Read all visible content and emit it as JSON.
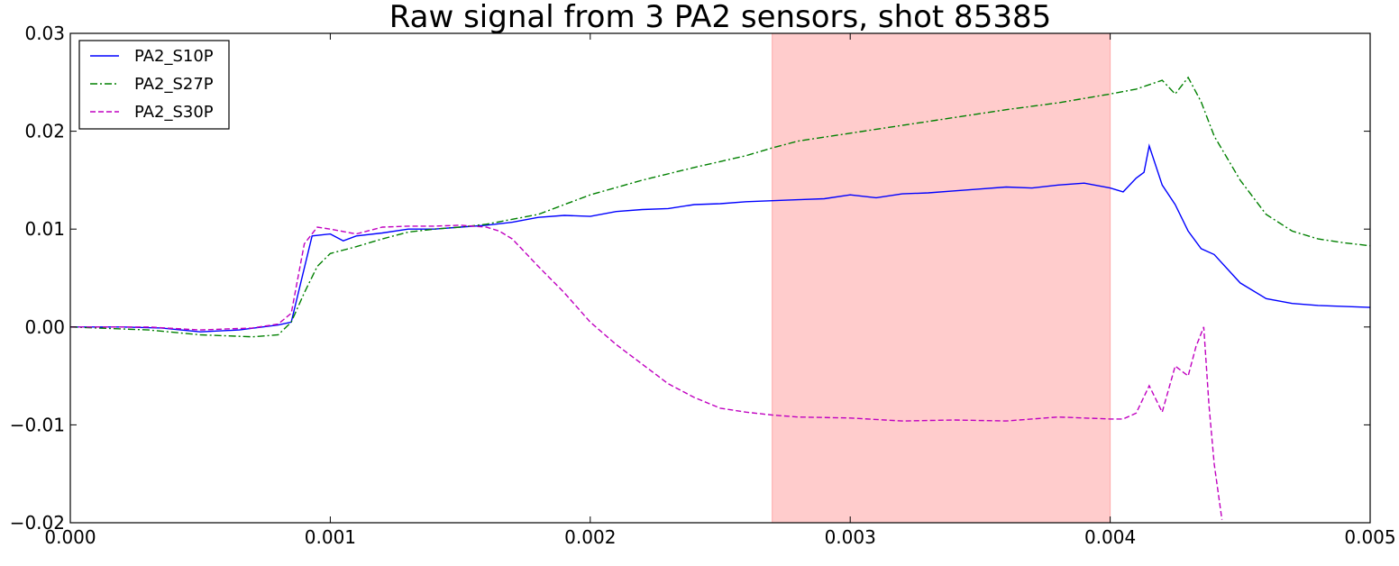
{
  "chart_data": {
    "type": "line",
    "title": "Raw signal from 3 PA2 sensors, shot 85385",
    "xlabel": "",
    "ylabel": "",
    "xlim": [
      0.0,
      0.005
    ],
    "ylim": [
      -0.02,
      0.03
    ],
    "xticks": [
      "0.000",
      "0.001",
      "0.002",
      "0.003",
      "0.004",
      "0.005"
    ],
    "yticks": [
      "0.03",
      "0.02",
      "0.01",
      "0.00",
      "−0.01",
      "−0.02"
    ],
    "grid": false,
    "legend_position": "top-left",
    "shaded_region": {
      "x_start": 0.0027,
      "x_end": 0.004,
      "color": "#ffcccc"
    },
    "series": [
      {
        "name": "PA2_S10P",
        "color": "#0000ff",
        "style": "solid",
        "x": [
          0.0,
          0.0002,
          0.00035,
          0.0005,
          0.00065,
          0.0008,
          0.00085,
          0.00093,
          0.001,
          0.00105,
          0.0011,
          0.0012,
          0.0013,
          0.0014,
          0.0015,
          0.0016,
          0.0017,
          0.0018,
          0.0019,
          0.002,
          0.0021,
          0.0022,
          0.0023,
          0.0024,
          0.0025,
          0.0026,
          0.0027,
          0.0028,
          0.0029,
          0.003,
          0.0031,
          0.0032,
          0.0033,
          0.0034,
          0.0035,
          0.0036,
          0.0037,
          0.0038,
          0.0039,
          0.004,
          0.00405,
          0.0041,
          0.00413,
          0.00415,
          0.0042,
          0.00425,
          0.0043,
          0.00435,
          0.0044,
          0.0045,
          0.0046,
          0.0047,
          0.0048,
          0.005
        ],
        "y": [
          0.0,
          0.0,
          -0.0001,
          -0.0005,
          -0.0003,
          0.0002,
          0.0005,
          0.0093,
          0.0095,
          0.0088,
          0.0093,
          0.0096,
          0.01,
          0.01,
          0.0102,
          0.0104,
          0.0107,
          0.0112,
          0.0114,
          0.0113,
          0.0118,
          0.012,
          0.0121,
          0.0125,
          0.0126,
          0.0128,
          0.0129,
          0.013,
          0.0131,
          0.0135,
          0.0132,
          0.0136,
          0.0137,
          0.0139,
          0.0141,
          0.0143,
          0.0142,
          0.0145,
          0.0147,
          0.0142,
          0.0138,
          0.0152,
          0.0158,
          0.0185,
          0.0145,
          0.0125,
          0.0098,
          0.008,
          0.0074,
          0.0045,
          0.0029,
          0.0024,
          0.0022,
          0.002
        ]
      },
      {
        "name": "PA2_S27P",
        "color": "#008000",
        "style": "dashdot",
        "x": [
          0.0,
          0.0003,
          0.0005,
          0.0007,
          0.0008,
          0.00085,
          0.0009,
          0.00095,
          0.001,
          0.0011,
          0.0012,
          0.0013,
          0.0014,
          0.0015,
          0.0016,
          0.0017,
          0.0018,
          0.0019,
          0.002,
          0.0022,
          0.0024,
          0.0026,
          0.0027,
          0.0028,
          0.003,
          0.0032,
          0.0034,
          0.0036,
          0.0038,
          0.004,
          0.0041,
          0.0042,
          0.00425,
          0.0043,
          0.00435,
          0.0044,
          0.0045,
          0.0046,
          0.0047,
          0.0048,
          0.0049,
          0.005
        ],
        "y": [
          0.0,
          -0.0003,
          -0.0008,
          -0.001,
          -0.0008,
          0.0005,
          0.0035,
          0.0062,
          0.0075,
          0.0082,
          0.009,
          0.0097,
          0.01,
          0.0102,
          0.0105,
          0.011,
          0.0115,
          0.0125,
          0.0135,
          0.015,
          0.0163,
          0.0175,
          0.0183,
          0.019,
          0.0198,
          0.0206,
          0.0214,
          0.0222,
          0.0229,
          0.0238,
          0.0243,
          0.0252,
          0.0238,
          0.0255,
          0.023,
          0.0195,
          0.015,
          0.0115,
          0.0098,
          0.009,
          0.0086,
          0.0083
        ]
      },
      {
        "name": "PA2_S30P",
        "color": "#c000c0",
        "style": "dashed",
        "x": [
          0.0,
          0.0003,
          0.0005,
          0.0007,
          0.0008,
          0.00085,
          0.0009,
          0.00095,
          0.001,
          0.0011,
          0.0012,
          0.0013,
          0.0014,
          0.0015,
          0.0016,
          0.00165,
          0.0017,
          0.0018,
          0.0019,
          0.002,
          0.0021,
          0.0022,
          0.0023,
          0.0024,
          0.0025,
          0.0026,
          0.0027,
          0.0028,
          0.003,
          0.0032,
          0.0034,
          0.0036,
          0.0038,
          0.004,
          0.00405,
          0.0041,
          0.00415,
          0.0042,
          0.00425,
          0.0043,
          0.00433,
          0.00436,
          0.00438,
          0.0044,
          0.00443
        ],
        "y": [
          0.0,
          0.0,
          -0.0003,
          -0.0001,
          0.0003,
          0.0014,
          0.0085,
          0.0102,
          0.01,
          0.0095,
          0.0102,
          0.0103,
          0.0103,
          0.0104,
          0.0102,
          0.0098,
          0.009,
          0.0062,
          0.0035,
          0.0005,
          -0.0018,
          -0.0038,
          -0.0058,
          -0.0072,
          -0.0083,
          -0.0087,
          -0.009,
          -0.0092,
          -0.0093,
          -0.0096,
          -0.0095,
          -0.0096,
          -0.0092,
          -0.0094,
          -0.0094,
          -0.0088,
          -0.006,
          -0.0087,
          -0.004,
          -0.005,
          -0.002,
          0.0,
          -0.008,
          -0.014,
          -0.0197
        ]
      }
    ]
  }
}
